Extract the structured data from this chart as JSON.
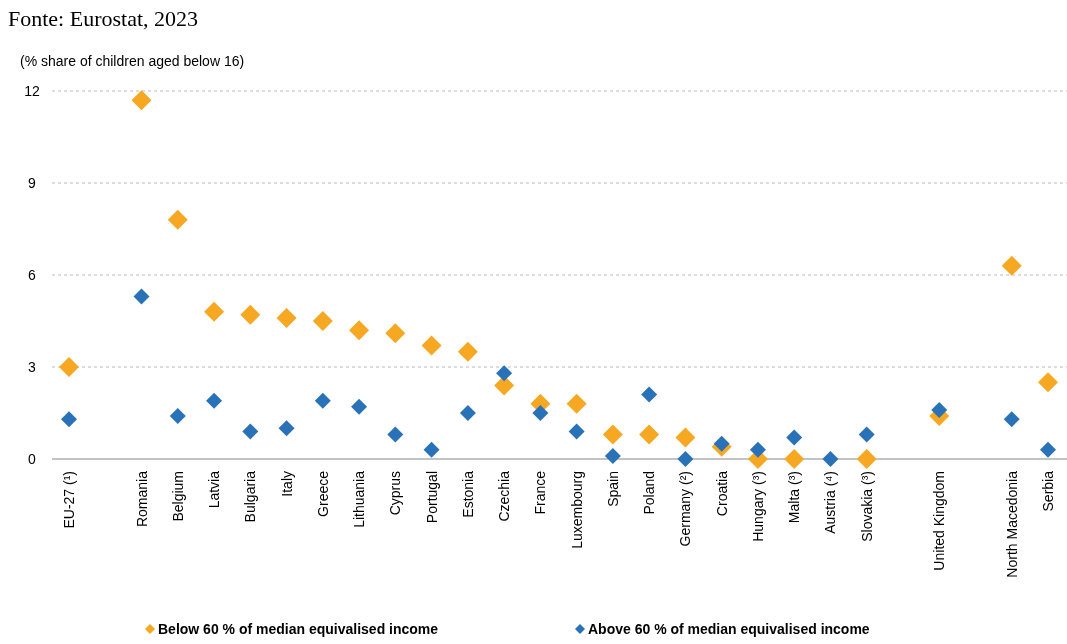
{
  "chart_data": {
    "type": "scatter",
    "annotations": [
      "Fonte: Eurostat, 2023"
    ],
    "ylabel": "(% share of children aged below 16)",
    "categories": [
      "EU-27 (¹)",
      null,
      "Romania",
      "Belgium",
      "Latvia",
      "Bulgaria",
      "Italy",
      "Greece",
      "Lithuania",
      "Cyprus",
      "Portugal",
      "Estonia",
      "Czechia",
      "France",
      "Luxembourg",
      "Spain",
      "Poland",
      "Germany (²)",
      "Croatia",
      "Hungary (³)",
      "Malta (³)",
      "Austria (⁴)",
      "Slovakia (³)",
      null,
      "United Kingdom",
      null,
      "North Macedonia",
      "Serbia"
    ],
    "series": [
      {
        "name": "Below 60 % of median equivalised income",
        "color": "#f7a823",
        "values": [
          3.0,
          null,
          11.7,
          7.8,
          4.8,
          4.7,
          4.6,
          4.5,
          4.2,
          4.1,
          3.7,
          3.5,
          2.4,
          1.8,
          1.8,
          0.8,
          0.8,
          0.7,
          0.4,
          0,
          0,
          null,
          0,
          null,
          1.4,
          null,
          6.3,
          2.5
        ]
      },
      {
        "name": "Above 60 % of median equivalised income",
        "color": "#2a72b8",
        "values": [
          1.3,
          null,
          5.3,
          1.4,
          1.9,
          0.9,
          1.0,
          1.9,
          1.7,
          0.8,
          0.3,
          1.5,
          2.8,
          1.5,
          0.9,
          0.1,
          2.1,
          0,
          0.5,
          0.3,
          0.7,
          0,
          0.8,
          null,
          1.6,
          null,
          1.3,
          0.3
        ]
      }
    ],
    "ylim": [
      0,
      12
    ],
    "yticks": [
      0,
      3,
      6,
      9,
      12
    ],
    "grid": "y",
    "legend": "bottom",
    "marker": "diamond"
  }
}
